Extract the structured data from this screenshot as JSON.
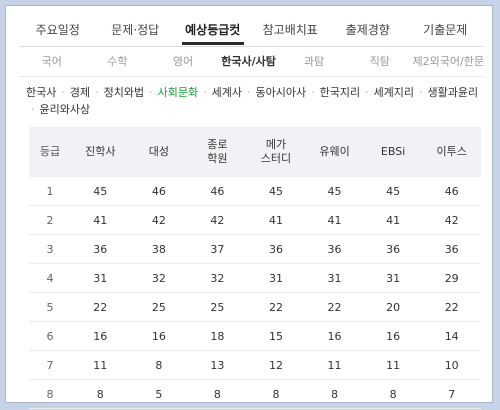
{
  "top_tabs": [
    {
      "label": "주요일정",
      "active": false
    },
    {
      "label": "문제·정답",
      "active": false
    },
    {
      "label": "예상등급컷",
      "active": true
    },
    {
      "label": "참고배치표",
      "active": false
    },
    {
      "label": "출제경향",
      "active": false
    },
    {
      "label": "기출문제",
      "active": false
    }
  ],
  "sub_tabs": [
    {
      "label": "국어",
      "active": false
    },
    {
      "label": "수학",
      "active": false
    },
    {
      "label": "영어",
      "active": false
    },
    {
      "label": "한국사/사탐",
      "active": true
    },
    {
      "label": "과탐",
      "active": false
    },
    {
      "label": "직탐",
      "active": false
    },
    {
      "label": "제2외국어/한문",
      "active": false
    }
  ],
  "categories": [
    {
      "label": "한국사",
      "active": false
    },
    {
      "label": "경제",
      "active": false
    },
    {
      "label": "정치와법",
      "active": false
    },
    {
      "label": "사회문화",
      "active": true
    },
    {
      "label": "세계사",
      "active": false
    },
    {
      "label": "동아시아사",
      "active": false
    },
    {
      "label": "한국지리",
      "active": false
    },
    {
      "label": "세계지리",
      "active": false
    },
    {
      "label": "생활과윤리",
      "active": false
    },
    {
      "label": "윤리와사상",
      "active": false
    }
  ],
  "table": {
    "grade_header": "등급",
    "columns": [
      {
        "line1": "진학사",
        "line2": ""
      },
      {
        "line1": "대성",
        "line2": ""
      },
      {
        "line1": "종로",
        "line2": "학원"
      },
      {
        "line1": "메가",
        "line2": "스터디"
      },
      {
        "line1": "유웨이",
        "line2": ""
      },
      {
        "line1": "EBSi",
        "line2": ""
      },
      {
        "line1": "이투스",
        "line2": ""
      }
    ],
    "rows": [
      {
        "grade": "1",
        "values": [
          "45",
          "46",
          "46",
          "45",
          "45",
          "45",
          "46"
        ]
      },
      {
        "grade": "2",
        "values": [
          "41",
          "42",
          "42",
          "41",
          "41",
          "41",
          "42"
        ]
      },
      {
        "grade": "3",
        "values": [
          "36",
          "38",
          "37",
          "36",
          "36",
          "36",
          "36"
        ]
      },
      {
        "grade": "4",
        "values": [
          "31",
          "32",
          "32",
          "31",
          "31",
          "31",
          "29"
        ]
      },
      {
        "grade": "5",
        "values": [
          "22",
          "25",
          "25",
          "22",
          "22",
          "20",
          "22"
        ]
      },
      {
        "grade": "6",
        "values": [
          "16",
          "16",
          "18",
          "15",
          "16",
          "16",
          "14"
        ]
      },
      {
        "grade": "7",
        "values": [
          "11",
          "8",
          "13",
          "12",
          "11",
          "11",
          "10"
        ]
      },
      {
        "grade": "8",
        "values": [
          "8",
          "5",
          "8",
          "8",
          "8",
          "8",
          "7"
        ]
      }
    ]
  },
  "colors": {
    "active_category": "#1f9a3a",
    "header_bg": "#f0f2f5",
    "page_bg": "#c7d3e6"
  }
}
